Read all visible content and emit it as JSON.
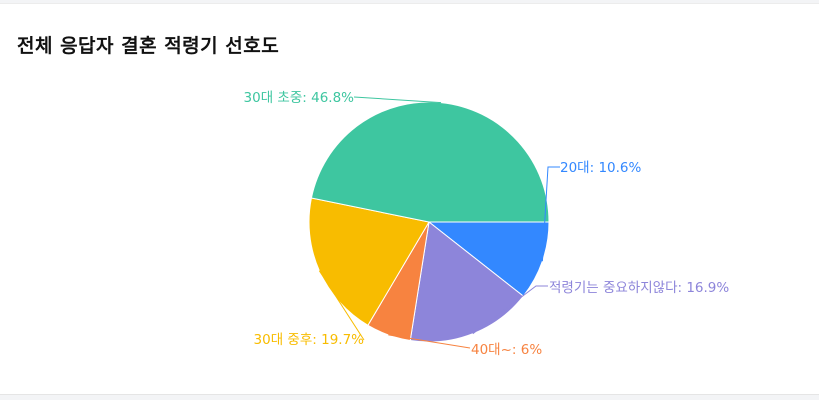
{
  "chart_data": {
    "type": "pie",
    "title": "전체 응답자 결혼 적령기 선호도",
    "slices": [
      {
        "label": "20대",
        "value": 10.6,
        "display": "20대: 10.6%",
        "color": "#3388ff"
      },
      {
        "label": "적령기는 중요하지않다",
        "value": 16.9,
        "display": "적령기는 중요하지않다: 16.9%",
        "color": "#8d85da"
      },
      {
        "label": "40대~",
        "value": 6,
        "display": "40대~: 6%",
        "color": "#f78340"
      },
      {
        "label": "30대 중후",
        "value": 19.7,
        "display": "30대 중후: 19.7%",
        "color": "#f8bc00"
      },
      {
        "label": "30대 초중",
        "value": 46.8,
        "display": "30대 초중: 46.8%",
        "color": "#3ec6a0"
      }
    ]
  }
}
